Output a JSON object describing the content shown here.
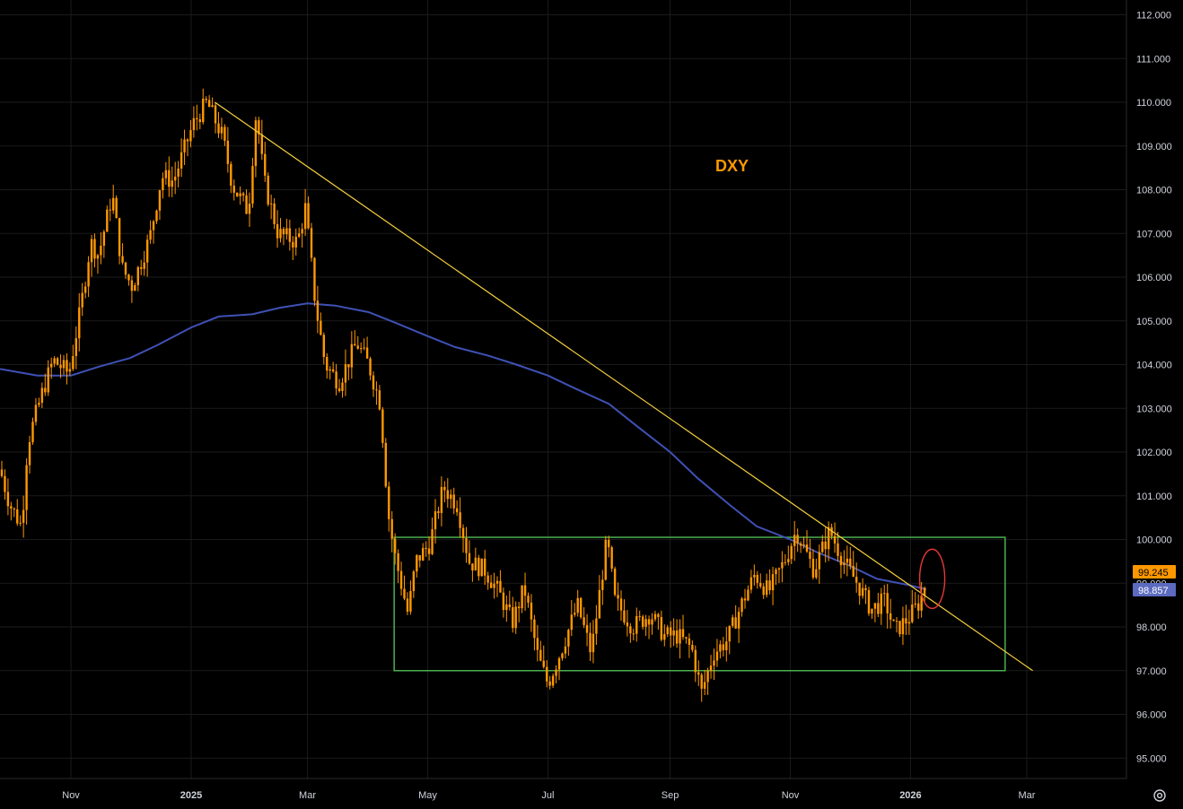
{
  "ticker": "DXY",
  "chart_data": {
    "type": "candlestick",
    "title": "DXY",
    "ylim": [
      94.5,
      112.3
    ],
    "y_ticks": [
      "112.000",
      "111.000",
      "110.000",
      "109.000",
      "108.000",
      "107.000",
      "106.000",
      "105.000",
      "104.000",
      "103.000",
      "102.000",
      "101.000",
      "100.000",
      "99.000",
      "98.000",
      "97.000",
      "96.000",
      "95.000"
    ],
    "x_ticks": [
      {
        "label": "Nov",
        "bold": false
      },
      {
        "label": "2025",
        "bold": true
      },
      {
        "label": "Mar",
        "bold": false
      },
      {
        "label": "May",
        "bold": false
      },
      {
        "label": "Jul",
        "bold": false
      },
      {
        "label": "Sep",
        "bold": false
      },
      {
        "label": "Nov",
        "bold": false
      },
      {
        "label": "2026",
        "bold": true
      },
      {
        "label": "Mar",
        "bold": false
      }
    ],
    "price_path": [
      [
        "2024-09-26",
        101.6
      ],
      [
        "2024-10-01",
        100.8
      ],
      [
        "2024-10-07",
        100.3
      ],
      [
        "2024-10-10",
        102.2
      ],
      [
        "2024-10-17",
        103.3
      ],
      [
        "2024-10-23",
        104.1
      ],
      [
        "2024-10-31",
        103.8
      ],
      [
        "2024-11-06",
        105.3
      ],
      [
        "2024-11-11",
        106.8
      ],
      [
        "2024-11-15",
        106.5
      ],
      [
        "2024-11-22",
        107.9
      ],
      [
        "2024-11-27",
        106.2
      ],
      [
        "2024-12-02",
        105.8
      ],
      [
        "2024-12-11",
        106.9
      ],
      [
        "2024-12-17",
        108.3
      ],
      [
        "2024-12-23",
        108.2
      ],
      [
        "2025-01-02",
        109.5
      ],
      [
        "2025-01-09",
        110.0
      ],
      [
        "2025-01-17",
        109.2
      ],
      [
        "2025-01-22",
        108.1
      ],
      [
        "2025-01-30",
        107.5
      ],
      [
        "2025-02-03",
        109.8
      ],
      [
        "2025-02-07",
        108.2
      ],
      [
        "2025-02-14",
        107.0
      ],
      [
        "2025-02-24",
        106.8
      ],
      [
        "2025-02-28",
        107.6
      ],
      [
        "2025-03-05",
        105.4
      ],
      [
        "2025-03-10",
        104.0
      ],
      [
        "2025-03-17",
        103.6
      ],
      [
        "2025-03-26",
        104.5
      ],
      [
        "2025-04-01",
        104.0
      ],
      [
        "2025-04-07",
        103.1
      ],
      [
        "2025-04-11",
        100.6
      ],
      [
        "2025-04-14",
        99.7
      ],
      [
        "2025-04-21",
        98.3
      ],
      [
        "2025-04-25",
        99.5
      ],
      [
        "2025-05-02",
        99.9
      ],
      [
        "2025-05-09",
        101.2
      ],
      [
        "2025-05-16",
        100.8
      ],
      [
        "2025-05-22",
        99.5
      ],
      [
        "2025-05-30",
        99.3
      ],
      [
        "2025-06-06",
        98.8
      ],
      [
        "2025-06-13",
        98.1
      ],
      [
        "2025-06-19",
        98.9
      ],
      [
        "2025-06-26",
        97.3
      ],
      [
        "2025-07-01",
        96.7
      ],
      [
        "2025-07-08",
        97.5
      ],
      [
        "2025-07-16",
        98.5
      ],
      [
        "2025-07-23",
        97.4
      ],
      [
        "2025-07-31",
        100.0
      ],
      [
        "2025-08-04",
        98.6
      ],
      [
        "2025-08-13",
        98.0
      ],
      [
        "2025-08-22",
        98.3
      ],
      [
        "2025-08-29",
        97.8
      ],
      [
        "2025-09-05",
        97.8
      ],
      [
        "2025-09-12",
        97.5
      ],
      [
        "2025-09-17",
        96.5
      ],
      [
        "2025-09-23",
        97.4
      ],
      [
        "2025-09-30",
        97.7
      ],
      [
        "2025-10-08",
        98.6
      ],
      [
        "2025-10-14",
        99.2
      ],
      [
        "2025-10-21",
        98.8
      ],
      [
        "2025-10-29",
        99.5
      ],
      [
        "2025-11-04",
        100.2
      ],
      [
        "2025-11-13",
        99.3
      ],
      [
        "2025-11-21",
        100.2
      ],
      [
        "2025-11-28",
        99.5
      ],
      [
        "2025-12-05",
        99.0
      ],
      [
        "2025-12-12",
        98.4
      ],
      [
        "2025-12-19",
        98.6
      ],
      [
        "2025-12-24",
        97.9
      ],
      [
        "2025-12-31",
        98.2
      ],
      [
        "2026-01-06",
        98.6
      ],
      [
        "2026-01-09",
        99.1
      ]
    ],
    "sma_path": [
      [
        "2024-09-26",
        103.9
      ],
      [
        "2024-10-15",
        103.75
      ],
      [
        "2024-11-01",
        103.75
      ],
      [
        "2024-11-15",
        103.95
      ],
      [
        "2024-12-01",
        104.15
      ],
      [
        "2024-12-15",
        104.45
      ],
      [
        "2025-01-01",
        104.85
      ],
      [
        "2025-01-15",
        105.1
      ],
      [
        "2025-02-01",
        105.15
      ],
      [
        "2025-02-15",
        105.3
      ],
      [
        "2025-03-01",
        105.4
      ],
      [
        "2025-03-15",
        105.35
      ],
      [
        "2025-04-01",
        105.2
      ],
      [
        "2025-04-15",
        104.95
      ],
      [
        "2025-05-01",
        104.65
      ],
      [
        "2025-05-15",
        104.4
      ],
      [
        "2025-06-01",
        104.2
      ],
      [
        "2025-06-15",
        104.0
      ],
      [
        "2025-07-01",
        103.75
      ],
      [
        "2025-07-15",
        103.45
      ],
      [
        "2025-08-01",
        103.1
      ],
      [
        "2025-08-15",
        102.6
      ],
      [
        "2025-09-01",
        102.0
      ],
      [
        "2025-09-15",
        101.4
      ],
      [
        "2025-10-01",
        100.8
      ],
      [
        "2025-10-15",
        100.3
      ],
      [
        "2025-11-01",
        100.0
      ],
      [
        "2025-11-15",
        99.7
      ],
      [
        "2025-12-01",
        99.4
      ],
      [
        "2025-12-15",
        99.1
      ],
      [
        "2026-01-01",
        98.95
      ],
      [
        "2026-01-09",
        98.86
      ]
    ],
    "trendline": {
      "from": [
        "2025-01-13",
        110.0
      ],
      "to": [
        "2026-03-04",
        97.0
      ],
      "color": "#f5d13d"
    },
    "range_box": {
      "x0": "2025-04-14",
      "x1": "2026-02-18",
      "y0": 97.0,
      "y1": 100.05,
      "color": "#4caf50"
    },
    "highlight_ellipse": {
      "x": "2026-01-12",
      "y": 99.1,
      "color": "#e53935"
    },
    "last_price": "99.245",
    "sma_value": "98.857",
    "colors": {
      "price": "#ff9800",
      "sma": "#3f51b5",
      "grid": "#1b1b1b",
      "axis_text": "#d1d4dc"
    }
  }
}
